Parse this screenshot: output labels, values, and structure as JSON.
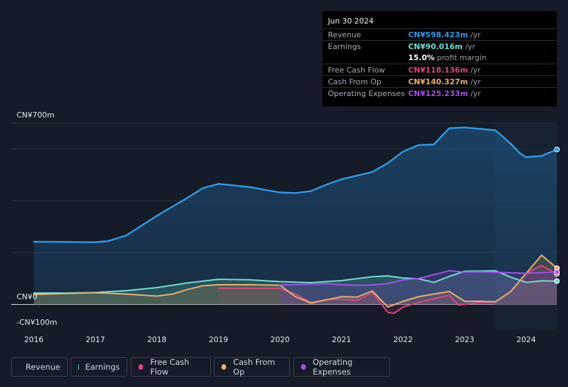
{
  "tooltip": {
    "date": "Jun 30 2024",
    "rows": [
      {
        "label": "Revenue",
        "value": "CN¥598.423m",
        "unit": " /yr",
        "color": "#2f9be8"
      },
      {
        "label": "Earnings",
        "value": "CN¥90.016m",
        "unit": " /yr",
        "color": "#6fe0d2"
      },
      {
        "label": "",
        "value": "15.0%",
        "unit": " profit margin",
        "color": "#ffffff"
      },
      {
        "label": "Free Cash Flow",
        "value": "CN¥118.136m",
        "unit": " /yr",
        "color": "#e0457b"
      },
      {
        "label": "Cash From Op",
        "value": "CN¥140.327m",
        "unit": " /yr",
        "color": "#e9b06c"
      },
      {
        "label": "Operating Expenses",
        "value": "CN¥125.233m",
        "unit": " /yr",
        "color": "#a64ff0"
      }
    ]
  },
  "legend": [
    {
      "label": "Revenue",
      "color": "#2f9be8"
    },
    {
      "label": "Earnings",
      "color": "#6fe0d2"
    },
    {
      "label": "Free Cash Flow",
      "color": "#e0457b"
    },
    {
      "label": "Cash From Op",
      "color": "#e9b06c"
    },
    {
      "label": "Operating Expenses",
      "color": "#a64ff0"
    }
  ],
  "chart_data": {
    "type": "line",
    "title": "",
    "ylabel_top": "CN¥700m",
    "ylabel_zero": "CN¥0",
    "ylabel_bottom": "-CN¥100m",
    "ylim": [
      -100,
      700
    ],
    "xlim": [
      2015.63,
      2024.5
    ],
    "forecast_start": 2023.5,
    "x_ticks": [
      "2016",
      "2017",
      "2018",
      "2019",
      "2020",
      "2021",
      "2022",
      "2023",
      "2024"
    ],
    "series": [
      {
        "name": "Revenue",
        "color": "#2f9be8",
        "x": [
          2016,
          2016.5,
          2017,
          2017.2,
          2017.5,
          2018,
          2018.5,
          2018.75,
          2019,
          2019.5,
          2020,
          2020.25,
          2020.5,
          2020.75,
          2021,
          2021.5,
          2021.75,
          2022,
          2022.25,
          2022.5,
          2022.75,
          2023,
          2023.5,
          2023.75,
          2023.9,
          2024,
          2024.25,
          2024.5
        ],
        "values": [
          242,
          241,
          240,
          244,
          266,
          342,
          412,
          449,
          465,
          453,
          432,
          430,
          437,
          462,
          483,
          511,
          545,
          590,
          615,
          617,
          680,
          683,
          672,
          620,
          583,
          568,
          573,
          598
        ]
      },
      {
        "name": "Earnings",
        "color": "#6fe0d2",
        "x": [
          2016,
          2016.5,
          2017,
          2017.5,
          2018,
          2018.5,
          2019,
          2019.5,
          2020,
          2020.5,
          2021,
          2021.5,
          2021.75,
          2022,
          2022.25,
          2022.5,
          2022.75,
          2023,
          2023.5,
          2023.75,
          2024,
          2024.25,
          2024.5
        ],
        "values": [
          44,
          44,
          46,
          53,
          65,
          83,
          97,
          95,
          88,
          84,
          92,
          107,
          110,
          102,
          99,
          85,
          108,
          128,
          130,
          105,
          85,
          91,
          90
        ]
      },
      {
        "name": "Free Cash Flow",
        "color": "#e0457b",
        "x": [
          2019,
          2019.5,
          2020,
          2020.25,
          2020.5,
          2020.75,
          2021,
          2021.25,
          2021.5,
          2021.75,
          2021.85,
          2022,
          2022.25,
          2022.5,
          2022.75,
          2022.9,
          2023,
          2023.25,
          2023.5,
          2023.75,
          2024,
          2024.25,
          2024.5
        ],
        "values": [
          62,
          62,
          62,
          40,
          8,
          18,
          20,
          15,
          45,
          -30,
          -35,
          -10,
          8,
          22,
          35,
          -2,
          0,
          8,
          10,
          50,
          120,
          150,
          118
        ]
      },
      {
        "name": "Cash From Op",
        "color": "#e9b06c",
        "x": [
          2016,
          2016.5,
          2017,
          2017.5,
          2018,
          2018.25,
          2018.5,
          2018.75,
          2019,
          2019.5,
          2020,
          2020.25,
          2020.5,
          2020.75,
          2021,
          2021.25,
          2021.5,
          2021.75,
          2022,
          2022.25,
          2022.5,
          2022.75,
          2023,
          2023.25,
          2023.5,
          2023.75,
          2024,
          2024.25,
          2024.5
        ],
        "values": [
          38,
          42,
          45,
          40,
          32,
          40,
          58,
          72,
          76,
          76,
          74,
          30,
          5,
          18,
          30,
          28,
          52,
          -10,
          12,
          30,
          40,
          50,
          12,
          12,
          10,
          50,
          120,
          190,
          140
        ]
      },
      {
        "name": "Operating Expenses",
        "color": "#a64ff0",
        "x": [
          2020,
          2020.5,
          2020.75,
          2021,
          2021.25,
          2021.5,
          2021.75,
          2022,
          2022.25,
          2022.5,
          2022.75,
          2023,
          2023.25,
          2023.5,
          2023.75,
          2024,
          2024.25,
          2024.5
        ],
        "values": [
          75,
          78,
          80,
          76,
          74,
          75,
          80,
          95,
          100,
          115,
          130,
          125,
          126,
          124,
          122,
          120,
          123,
          125
        ]
      }
    ]
  }
}
